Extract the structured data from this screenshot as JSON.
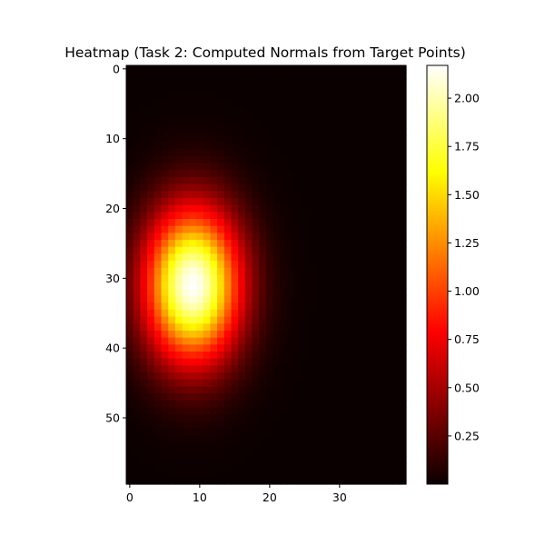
{
  "chart_data": {
    "type": "heatmap",
    "title": "Heatmap (Task 2: Computed Normals from Target Points)",
    "xlabel": "",
    "ylabel": "",
    "grid": false,
    "legend": "none",
    "colormap": "hot",
    "columns": 40,
    "rows": 60,
    "x_ticks": [
      0,
      10,
      20,
      30
    ],
    "x_tick_labels": [
      "0",
      "10",
      "20",
      "30"
    ],
    "y_ticks": [
      0,
      10,
      20,
      30,
      40,
      50
    ],
    "y_tick_labels": [
      "0",
      "10",
      "20",
      "30",
      "40",
      "50"
    ],
    "value_range": [
      0,
      2.17
    ],
    "peak": {
      "column": 9,
      "row": 31,
      "value": 2.17
    },
    "spread": {
      "column_sigma": 4.7,
      "row_sigma": 7.6
    },
    "colorbar": {
      "ticks": [
        0.25,
        0.5,
        0.75,
        1.0,
        1.25,
        1.5,
        1.75,
        2.0
      ],
      "tick_labels": [
        "0.25",
        "0.50",
        "0.75",
        "1.00",
        "1.25",
        "1.50",
        "1.75",
        "2.00"
      ]
    }
  }
}
